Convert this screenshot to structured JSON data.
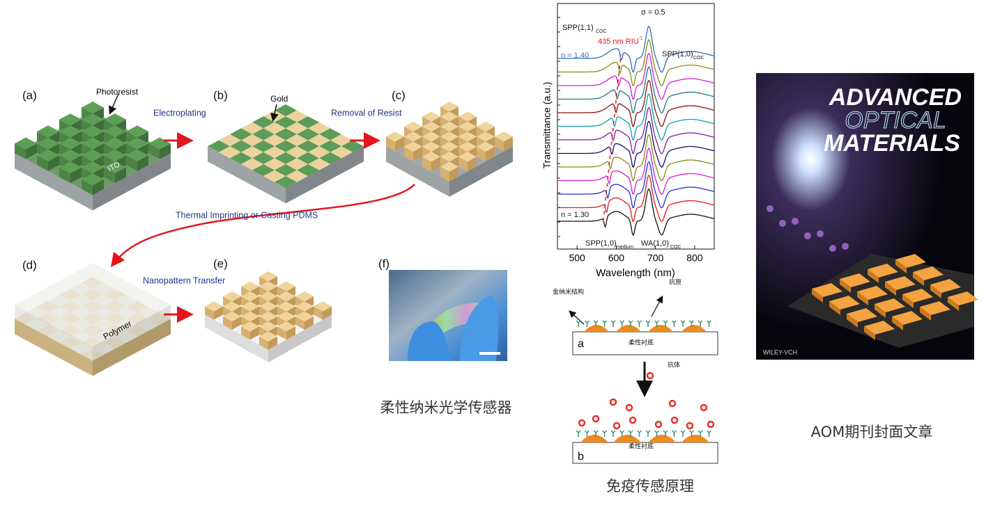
{
  "process": {
    "panel_labels": [
      "(a)",
      "(b)",
      "(c)",
      "(d)",
      "(e)",
      "(f)"
    ],
    "annotations": {
      "photoresist": "Photoresist",
      "ito": "ITO",
      "gold": "Gold",
      "polymer": "Polymer"
    },
    "steps": [
      "Electroplating",
      "Removal of Resist",
      "Thermal Imprinting or Casting PDMS",
      "Nanopattern Transfer"
    ]
  },
  "spectrum": {
    "sigma": "σ = 0.5",
    "y_label": "Transmittance (a.u.)",
    "x_label": "Wavelength (nm)",
    "xlim": [
      450,
      850
    ],
    "xticks": [
      500,
      600,
      700,
      800
    ],
    "notes": {
      "spp11": "SPP(1,1)",
      "spp11_sub": "COC",
      "sens": "435 nm RIU",
      "sens_sup": "-1",
      "n_top": "n = 1.40",
      "spp10": "SPP(1,0)",
      "spp10_sub": "COC",
      "n_bottom": "n = 1.30",
      "spp10m": "SPP(1,0)",
      "spp10m_sub": "medium",
      "wa": "WA(1,0)",
      "wa_sub": "COC"
    }
  },
  "schematic": {
    "gold_nano": "金纳米结构",
    "antigen": "抗原",
    "panel_a": "a",
    "substrate_a": "柔性衬底",
    "antibody": "抗体",
    "panel_b": "b",
    "substrate_b": "柔性衬底"
  },
  "cover": {
    "title_lines": [
      "ADVANCED",
      "OPTICAL",
      "MATERIALS"
    ],
    "publisher": "WILEY-VCH"
  },
  "captions": [
    "柔性纳米光学传感器",
    "免疫传感原理",
    "AOM期刊封面文章"
  ]
}
